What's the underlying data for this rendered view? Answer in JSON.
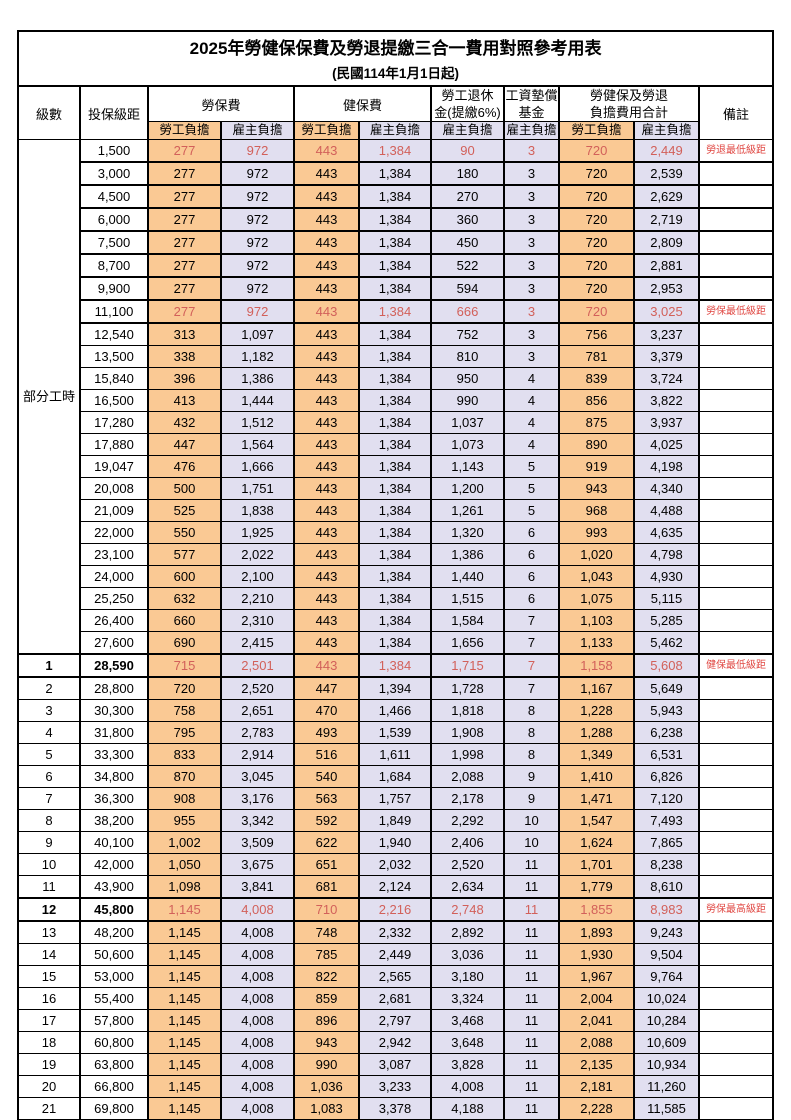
{
  "title": "2025年勞健保保費及勞退提繳三合一費用對照參考用表",
  "subtitle": "(民國114年1月1日起)",
  "header": {
    "level": "級數",
    "bracket": "投保級距",
    "labor_ins": "勞保費",
    "health_ins": "健保費",
    "pension_line1": "勞工退休",
    "pension_line2": "金(提繳6%)",
    "wage_fund_line1": "工資墊償",
    "wage_fund_line2": "基金",
    "total_line1": "勞健保及勞退",
    "total_line2": "負擔費用合計",
    "remark": "備註",
    "employee": "勞工負擔",
    "employer": "雇主負擔"
  },
  "part_time_label": "部分工時",
  "colors": {
    "employee_bg": "#FAC994",
    "employer_bg": "#E1DFF0",
    "highlight_number": "#D2605A",
    "remark_red": "#E04843",
    "border": "#000000"
  },
  "rows": [
    {
      "level": "",
      "bracket": "1,500",
      "labor_emp": "277",
      "labor_er": "972",
      "health_emp": "443",
      "health_er": "1,384",
      "pension_er": "90",
      "fund_er": "3",
      "total_emp": "720",
      "total_er": "2,449",
      "remark": "勞退最低級距",
      "red": true,
      "hl": false
    },
    {
      "level": "",
      "bracket": "3,000",
      "labor_emp": "277",
      "labor_er": "972",
      "health_emp": "443",
      "health_er": "1,384",
      "pension_er": "180",
      "fund_er": "3",
      "total_emp": "720",
      "total_er": "2,539",
      "remark": "",
      "red": false,
      "hl": false
    },
    {
      "level": "",
      "bracket": "4,500",
      "labor_emp": "277",
      "labor_er": "972",
      "health_emp": "443",
      "health_er": "1,384",
      "pension_er": "270",
      "fund_er": "3",
      "total_emp": "720",
      "total_er": "2,629",
      "remark": "",
      "red": false,
      "hl": false
    },
    {
      "level": "",
      "bracket": "6,000",
      "labor_emp": "277",
      "labor_er": "972",
      "health_emp": "443",
      "health_er": "1,384",
      "pension_er": "360",
      "fund_er": "3",
      "total_emp": "720",
      "total_er": "2,719",
      "remark": "",
      "red": false,
      "hl": false
    },
    {
      "level": "",
      "bracket": "7,500",
      "labor_emp": "277",
      "labor_er": "972",
      "health_emp": "443",
      "health_er": "1,384",
      "pension_er": "450",
      "fund_er": "3",
      "total_emp": "720",
      "total_er": "2,809",
      "remark": "",
      "red": false,
      "hl": false
    },
    {
      "level": "",
      "bracket": "8,700",
      "labor_emp": "277",
      "labor_er": "972",
      "health_emp": "443",
      "health_er": "1,384",
      "pension_er": "522",
      "fund_er": "3",
      "total_emp": "720",
      "total_er": "2,881",
      "remark": "",
      "red": false,
      "hl": false
    },
    {
      "level": "",
      "bracket": "9,900",
      "labor_emp": "277",
      "labor_er": "972",
      "health_emp": "443",
      "health_er": "1,384",
      "pension_er": "594",
      "fund_er": "3",
      "total_emp": "720",
      "total_er": "2,953",
      "remark": "",
      "red": false,
      "hl": false
    },
    {
      "level": "",
      "bracket": "11,100",
      "labor_emp": "277",
      "labor_er": "972",
      "health_emp": "443",
      "health_er": "1,384",
      "pension_er": "666",
      "fund_er": "3",
      "total_emp": "720",
      "total_er": "3,025",
      "remark": "勞保最低級距",
      "red": true,
      "hl": false
    },
    {
      "level": "",
      "bracket": "12,540",
      "labor_emp": "313",
      "labor_er": "1,097",
      "health_emp": "443",
      "health_er": "1,384",
      "pension_er": "752",
      "fund_er": "3",
      "total_emp": "756",
      "total_er": "3,237",
      "remark": "",
      "red": false,
      "hl": false
    },
    {
      "level": "",
      "bracket": "13,500",
      "labor_emp": "338",
      "labor_er": "1,182",
      "health_emp": "443",
      "health_er": "1,384",
      "pension_er": "810",
      "fund_er": "3",
      "total_emp": "781",
      "total_er": "3,379",
      "remark": "",
      "red": false,
      "hl": false
    },
    {
      "level": "",
      "bracket": "15,840",
      "labor_emp": "396",
      "labor_er": "1,386",
      "health_emp": "443",
      "health_er": "1,384",
      "pension_er": "950",
      "fund_er": "4",
      "total_emp": "839",
      "total_er": "3,724",
      "remark": "",
      "red": false,
      "hl": false
    },
    {
      "level": "",
      "bracket": "16,500",
      "labor_emp": "413",
      "labor_er": "1,444",
      "health_emp": "443",
      "health_er": "1,384",
      "pension_er": "990",
      "fund_er": "4",
      "total_emp": "856",
      "total_er": "3,822",
      "remark": "",
      "red": false,
      "hl": false
    },
    {
      "level": "",
      "bracket": "17,280",
      "labor_emp": "432",
      "labor_er": "1,512",
      "health_emp": "443",
      "health_er": "1,384",
      "pension_er": "1,037",
      "fund_er": "4",
      "total_emp": "875",
      "total_er": "3,937",
      "remark": "",
      "red": false,
      "hl": false
    },
    {
      "level": "",
      "bracket": "17,880",
      "labor_emp": "447",
      "labor_er": "1,564",
      "health_emp": "443",
      "health_er": "1,384",
      "pension_er": "1,073",
      "fund_er": "4",
      "total_emp": "890",
      "total_er": "4,025",
      "remark": "",
      "red": false,
      "hl": false
    },
    {
      "level": "",
      "bracket": "19,047",
      "labor_emp": "476",
      "labor_er": "1,666",
      "health_emp": "443",
      "health_er": "1,384",
      "pension_er": "1,143",
      "fund_er": "5",
      "total_emp": "919",
      "total_er": "4,198",
      "remark": "",
      "red": false,
      "hl": false
    },
    {
      "level": "",
      "bracket": "20,008",
      "labor_emp": "500",
      "labor_er": "1,751",
      "health_emp": "443",
      "health_er": "1,384",
      "pension_er": "1,200",
      "fund_er": "5",
      "total_emp": "943",
      "total_er": "4,340",
      "remark": "",
      "red": false,
      "hl": false
    },
    {
      "level": "",
      "bracket": "21,009",
      "labor_emp": "525",
      "labor_er": "1,838",
      "health_emp": "443",
      "health_er": "1,384",
      "pension_er": "1,261",
      "fund_er": "5",
      "total_emp": "968",
      "total_er": "4,488",
      "remark": "",
      "red": false,
      "hl": false
    },
    {
      "level": "",
      "bracket": "22,000",
      "labor_emp": "550",
      "labor_er": "1,925",
      "health_emp": "443",
      "health_er": "1,384",
      "pension_er": "1,320",
      "fund_er": "6",
      "total_emp": "993",
      "total_er": "4,635",
      "remark": "",
      "red": false,
      "hl": false
    },
    {
      "level": "",
      "bracket": "23,100",
      "labor_emp": "577",
      "labor_er": "2,022",
      "health_emp": "443",
      "health_er": "1,384",
      "pension_er": "1,386",
      "fund_er": "6",
      "total_emp": "1,020",
      "total_er": "4,798",
      "remark": "",
      "red": false,
      "hl": false
    },
    {
      "level": "",
      "bracket": "24,000",
      "labor_emp": "600",
      "labor_er": "2,100",
      "health_emp": "443",
      "health_er": "1,384",
      "pension_er": "1,440",
      "fund_er": "6",
      "total_emp": "1,043",
      "total_er": "4,930",
      "remark": "",
      "red": false,
      "hl": false
    },
    {
      "level": "",
      "bracket": "25,250",
      "labor_emp": "632",
      "labor_er": "2,210",
      "health_emp": "443",
      "health_er": "1,384",
      "pension_er": "1,515",
      "fund_er": "6",
      "total_emp": "1,075",
      "total_er": "5,115",
      "remark": "",
      "red": false,
      "hl": false
    },
    {
      "level": "",
      "bracket": "26,400",
      "labor_emp": "660",
      "labor_er": "2,310",
      "health_emp": "443",
      "health_er": "1,384",
      "pension_er": "1,584",
      "fund_er": "7",
      "total_emp": "1,103",
      "total_er": "5,285",
      "remark": "",
      "red": false,
      "hl": false
    },
    {
      "level": "",
      "bracket": "27,600",
      "labor_emp": "690",
      "labor_er": "2,415",
      "health_emp": "443",
      "health_er": "1,384",
      "pension_er": "1,656",
      "fund_er": "7",
      "total_emp": "1,133",
      "total_er": "5,462",
      "remark": "",
      "red": false,
      "hl": false
    },
    {
      "level": "1",
      "bracket": "28,590",
      "labor_emp": "715",
      "labor_er": "2,501",
      "health_emp": "443",
      "health_er": "1,384",
      "pension_er": "1,715",
      "fund_er": "7",
      "total_emp": "1,158",
      "total_er": "5,608",
      "remark": "健保最低級距",
      "red": true,
      "hl": true
    },
    {
      "level": "2",
      "bracket": "28,800",
      "labor_emp": "720",
      "labor_er": "2,520",
      "health_emp": "447",
      "health_er": "1,394",
      "pension_er": "1,728",
      "fund_er": "7",
      "total_emp": "1,167",
      "total_er": "5,649",
      "remark": "",
      "red": false,
      "hl": false
    },
    {
      "level": "3",
      "bracket": "30,300",
      "labor_emp": "758",
      "labor_er": "2,651",
      "health_emp": "470",
      "health_er": "1,466",
      "pension_er": "1,818",
      "fund_er": "8",
      "total_emp": "1,228",
      "total_er": "5,943",
      "remark": "",
      "red": false,
      "hl": false
    },
    {
      "level": "4",
      "bracket": "31,800",
      "labor_emp": "795",
      "labor_er": "2,783",
      "health_emp": "493",
      "health_er": "1,539",
      "pension_er": "1,908",
      "fund_er": "8",
      "total_emp": "1,288",
      "total_er": "6,238",
      "remark": "",
      "red": false,
      "hl": false
    },
    {
      "level": "5",
      "bracket": "33,300",
      "labor_emp": "833",
      "labor_er": "2,914",
      "health_emp": "516",
      "health_er": "1,611",
      "pension_er": "1,998",
      "fund_er": "8",
      "total_emp": "1,349",
      "total_er": "6,531",
      "remark": "",
      "red": false,
      "hl": false
    },
    {
      "level": "6",
      "bracket": "34,800",
      "labor_emp": "870",
      "labor_er": "3,045",
      "health_emp": "540",
      "health_er": "1,684",
      "pension_er": "2,088",
      "fund_er": "9",
      "total_emp": "1,410",
      "total_er": "6,826",
      "remark": "",
      "red": false,
      "hl": false
    },
    {
      "level": "7",
      "bracket": "36,300",
      "labor_emp": "908",
      "labor_er": "3,176",
      "health_emp": "563",
      "health_er": "1,757",
      "pension_er": "2,178",
      "fund_er": "9",
      "total_emp": "1,471",
      "total_er": "7,120",
      "remark": "",
      "red": false,
      "hl": false
    },
    {
      "level": "8",
      "bracket": "38,200",
      "labor_emp": "955",
      "labor_er": "3,342",
      "health_emp": "592",
      "health_er": "1,849",
      "pension_er": "2,292",
      "fund_er": "10",
      "total_emp": "1,547",
      "total_er": "7,493",
      "remark": "",
      "red": false,
      "hl": false
    },
    {
      "level": "9",
      "bracket": "40,100",
      "labor_emp": "1,002",
      "labor_er": "3,509",
      "health_emp": "622",
      "health_er": "1,940",
      "pension_er": "2,406",
      "fund_er": "10",
      "total_emp": "1,624",
      "total_er": "7,865",
      "remark": "",
      "red": false,
      "hl": false
    },
    {
      "level": "10",
      "bracket": "42,000",
      "labor_emp": "1,050",
      "labor_er": "3,675",
      "health_emp": "651",
      "health_er": "2,032",
      "pension_er": "2,520",
      "fund_er": "11",
      "total_emp": "1,701",
      "total_er": "8,238",
      "remark": "",
      "red": false,
      "hl": false
    },
    {
      "level": "11",
      "bracket": "43,900",
      "labor_emp": "1,098",
      "labor_er": "3,841",
      "health_emp": "681",
      "health_er": "2,124",
      "pension_er": "2,634",
      "fund_er": "11",
      "total_emp": "1,779",
      "total_er": "8,610",
      "remark": "",
      "red": false,
      "hl": false
    },
    {
      "level": "12",
      "bracket": "45,800",
      "labor_emp": "1,145",
      "labor_er": "4,008",
      "health_emp": "710",
      "health_er": "2,216",
      "pension_er": "2,748",
      "fund_er": "11",
      "total_emp": "1,855",
      "total_er": "8,983",
      "remark": "勞保最高級距",
      "red": true,
      "hl": true
    },
    {
      "level": "13",
      "bracket": "48,200",
      "labor_emp": "1,145",
      "labor_er": "4,008",
      "health_emp": "748",
      "health_er": "2,332",
      "pension_er": "2,892",
      "fund_er": "11",
      "total_emp": "1,893",
      "total_er": "9,243",
      "remark": "",
      "red": false,
      "hl": false
    },
    {
      "level": "14",
      "bracket": "50,600",
      "labor_emp": "1,145",
      "labor_er": "4,008",
      "health_emp": "785",
      "health_er": "2,449",
      "pension_er": "3,036",
      "fund_er": "11",
      "total_emp": "1,930",
      "total_er": "9,504",
      "remark": "",
      "red": false,
      "hl": false
    },
    {
      "level": "15",
      "bracket": "53,000",
      "labor_emp": "1,145",
      "labor_er": "4,008",
      "health_emp": "822",
      "health_er": "2,565",
      "pension_er": "3,180",
      "fund_er": "11",
      "total_emp": "1,967",
      "total_er": "9,764",
      "remark": "",
      "red": false,
      "hl": false
    },
    {
      "level": "16",
      "bracket": "55,400",
      "labor_emp": "1,145",
      "labor_er": "4,008",
      "health_emp": "859",
      "health_er": "2,681",
      "pension_er": "3,324",
      "fund_er": "11",
      "total_emp": "2,004",
      "total_er": "10,024",
      "remark": "",
      "red": false,
      "hl": false
    },
    {
      "level": "17",
      "bracket": "57,800",
      "labor_emp": "1,145",
      "labor_er": "4,008",
      "health_emp": "896",
      "health_er": "2,797",
      "pension_er": "3,468",
      "fund_er": "11",
      "total_emp": "2,041",
      "total_er": "10,284",
      "remark": "",
      "red": false,
      "hl": false
    },
    {
      "level": "18",
      "bracket": "60,800",
      "labor_emp": "1,145",
      "labor_er": "4,008",
      "health_emp": "943",
      "health_er": "2,942",
      "pension_er": "3,648",
      "fund_er": "11",
      "total_emp": "2,088",
      "total_er": "10,609",
      "remark": "",
      "red": false,
      "hl": false
    },
    {
      "level": "19",
      "bracket": "63,800",
      "labor_emp": "1,145",
      "labor_er": "4,008",
      "health_emp": "990",
      "health_er": "3,087",
      "pension_er": "3,828",
      "fund_er": "11",
      "total_emp": "2,135",
      "total_er": "10,934",
      "remark": "",
      "red": false,
      "hl": false
    },
    {
      "level": "20",
      "bracket": "66,800",
      "labor_emp": "1,145",
      "labor_er": "4,008",
      "health_emp": "1,036",
      "health_er": "3,233",
      "pension_er": "4,008",
      "fund_er": "11",
      "total_emp": "2,181",
      "total_er": "11,260",
      "remark": "",
      "red": false,
      "hl": false
    },
    {
      "level": "21",
      "bracket": "69,800",
      "labor_emp": "1,145",
      "labor_er": "4,008",
      "health_emp": "1,083",
      "health_er": "3,378",
      "pension_er": "4,188",
      "fund_er": "11",
      "total_emp": "2,228",
      "total_er": "11,585",
      "remark": "",
      "red": false,
      "hl": false
    }
  ]
}
